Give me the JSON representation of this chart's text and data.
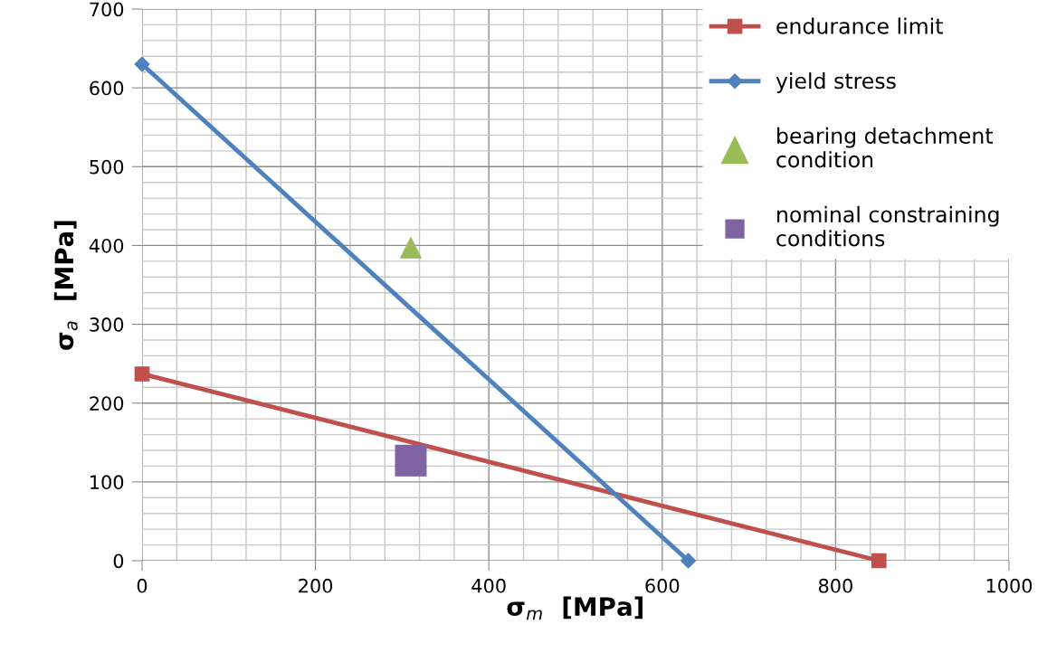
{
  "chart_data": {
    "type": "line",
    "xlabel": "σ$_{m}$  [MPa]",
    "ylabel": "σ$_{a}$  [MPa]",
    "series": [
      {
        "name": "endurance limit",
        "color": "#c0504d",
        "x": [
          0,
          850
        ],
        "values": [
          237,
          0
        ],
        "marker": "square"
      },
      {
        "name": "yield stress",
        "color": "#4f81bd",
        "x": [
          0,
          630
        ],
        "values": [
          630,
          0
        ],
        "marker": "diamond"
      },
      {
        "name": "bearing detachment\ncondition",
        "type": "scatter",
        "color": "#9bbb59",
        "x": [
          310
        ],
        "values": [
          397
        ],
        "marker": "triangle"
      },
      {
        "name": "nominal constraining\nconditions",
        "type": "scatter",
        "color": "#8064a2",
        "x": [
          310
        ],
        "values": [
          127
        ],
        "marker": "square"
      }
    ],
    "xlim": [
      0,
      1000
    ],
    "xticks": [
      0,
      200,
      400,
      600,
      800,
      1000
    ],
    "ylim": [
      0,
      700
    ],
    "yticks": [
      0,
      100,
      200,
      300,
      400,
      500,
      600,
      700
    ],
    "grid": true,
    "legend": "top right"
  }
}
